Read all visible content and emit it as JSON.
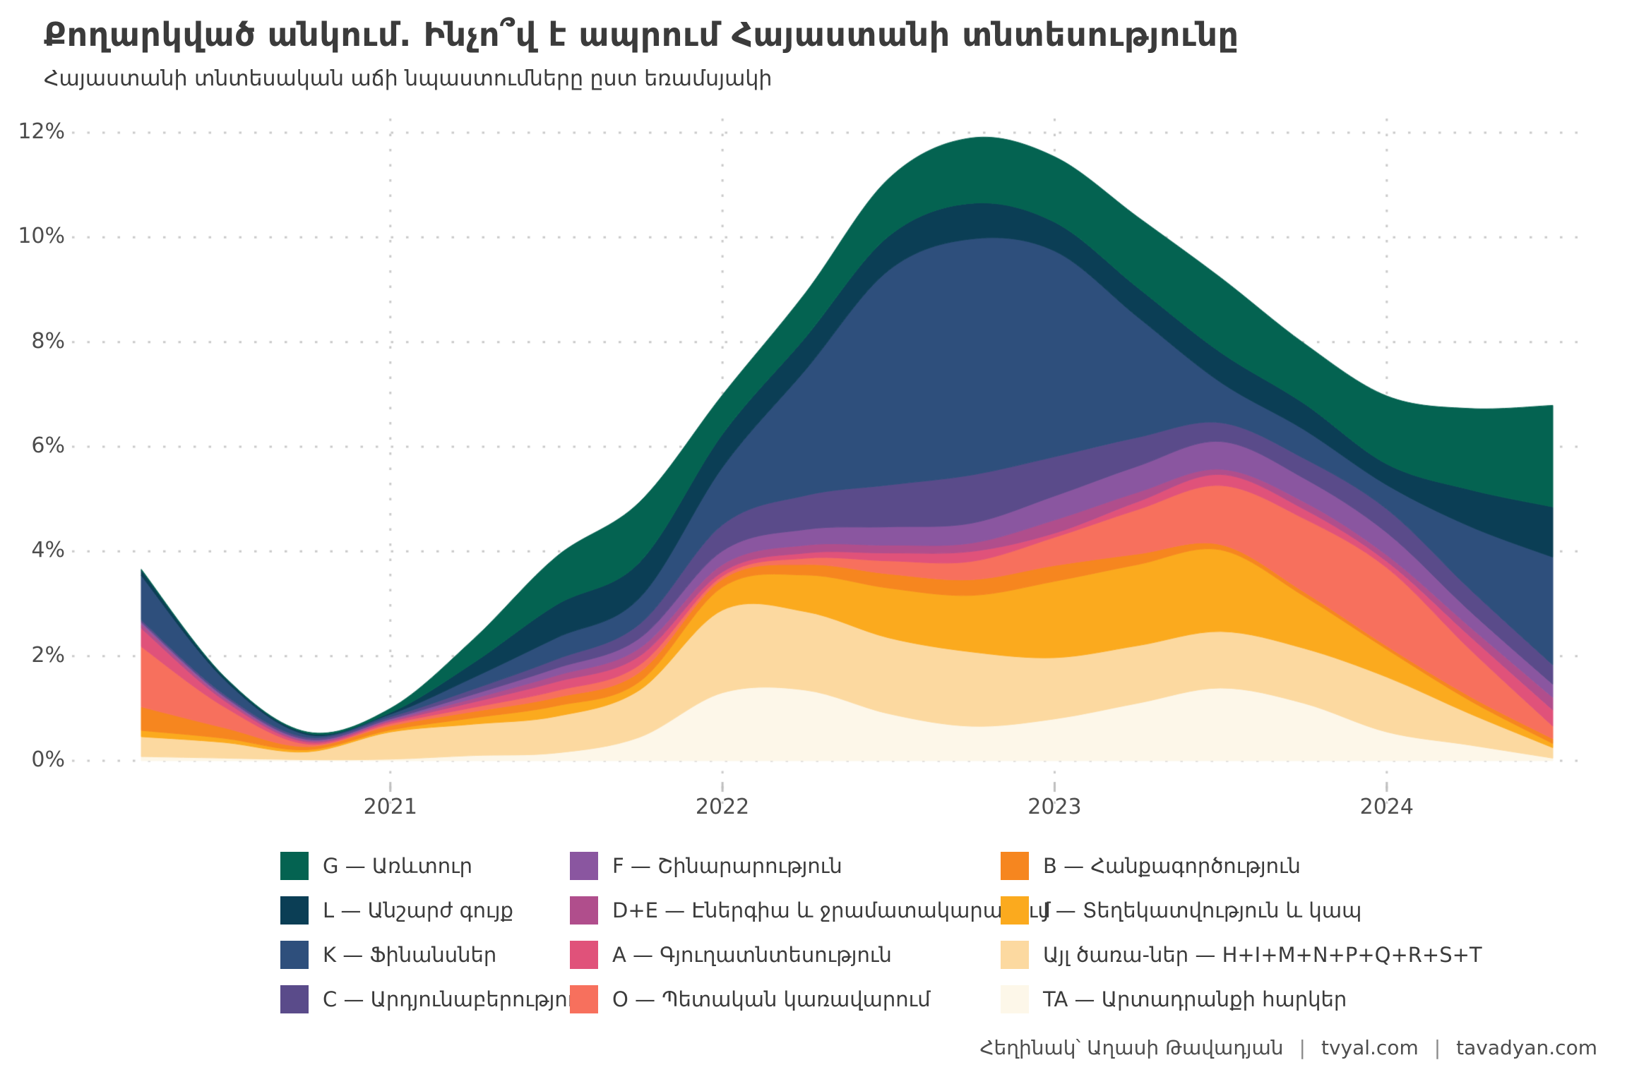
{
  "title": "Քողարկված անկում. Ինչո՞վ է ապրում Հայաստանի տնտեսությունը",
  "subtitle": "Հայաստանի տնտեսական աճի նպաստումները ըստ եռամսյակի",
  "y_axis": {
    "labels": [
      "12%",
      "10%",
      "8%",
      "6%",
      "4%",
      "2%",
      "0%"
    ],
    "values": [
      12,
      10,
      8,
      6,
      4,
      2,
      0
    ]
  },
  "x_axis": {
    "labels": [
      "2021",
      "2022",
      "2023",
      "2024"
    ],
    "tick_indices": [
      3,
      7,
      11,
      15
    ]
  },
  "legend": {
    "items": [
      {
        "label": "G — Առևտուր",
        "color": "#046351"
      },
      {
        "label": "L — Անշարժ գույք",
        "color": "#0b3e55"
      },
      {
        "label": "K — Ֆինանսներ",
        "color": "#2e4f7c"
      },
      {
        "label": "C — Արդյունաբերություն",
        "color": "#5a4b8a"
      },
      {
        "label": "F — Շինարարություն",
        "color": "#8a56a0"
      },
      {
        "label": "D+E — Էներգիա և ջրամատակարարում",
        "color": "#b04e8c"
      },
      {
        "label": "A — Գյուղատնտեսություն",
        "color": "#e0527a"
      },
      {
        "label": "O — Պետական կառավարում",
        "color": "#f7705d"
      },
      {
        "label": "B — Հանքագործություն",
        "color": "#f6861f"
      },
      {
        "label": "J — Տեղեկատվություն և կապ",
        "color": "#fbaa1e"
      },
      {
        "label": "Այլ ծառա-ներ — H+I+M+N+P+Q+R+S+T",
        "color": "#fcd9a0"
      },
      {
        "label": "TA — Արտադրանքի հարկեր",
        "color": "#fdf7e9"
      }
    ]
  },
  "footer": {
    "author": "Հեղինակ՝ Աղասի Թավադյան",
    "separator": "|",
    "link1": "tvyal.com",
    "link2": "tavadyan.com"
  },
  "chart_data": {
    "type": "area",
    "stacked": true,
    "smoothed": true,
    "title": "Քողարկված անկում. Ինչո՞վ է ապրում Հայաստանի տնտեսությունը",
    "subtitle": "Հայաստանի տնտեսական աճի նպաստումները ըստ եռամսյակի",
    "xlabel": "",
    "ylabel": "",
    "ylim": [
      0,
      12
    ],
    "grid": "dotted",
    "legend_position": "bottom",
    "x": [
      "2020 Q2",
      "2020 Q3",
      "2020 Q4",
      "2021 Q1",
      "2021 Q2",
      "2021 Q3",
      "2021 Q4",
      "2022 Q1",
      "2022 Q2",
      "2022 Q3",
      "2022 Q4",
      "2023 Q1",
      "2023 Q2",
      "2023 Q3",
      "2023 Q4",
      "2024 Q1",
      "2024 Q2",
      "2024 Q3"
    ],
    "units": "percentage points of GDP growth",
    "series_bottom_to_top": [
      {
        "name": "TA — Արտադրանքի հարկեր",
        "color": "#fdf7e9",
        "values": [
          0.08,
          0.05,
          0.02,
          0.03,
          0.1,
          0.15,
          0.45,
          1.3,
          1.35,
          0.9,
          0.66,
          0.8,
          1.1,
          1.39,
          1.1,
          0.55,
          0.3,
          0.05
        ]
      },
      {
        "name": "Այլ ծառա-ներ — H+I+M+N+P+Q+R+S+T",
        "color": "#fcd9a0",
        "values": [
          0.38,
          0.3,
          0.15,
          0.52,
          0.6,
          0.7,
          0.9,
          1.58,
          1.5,
          1.45,
          1.42,
          1.17,
          1.1,
          1.08,
          1.05,
          1.05,
          0.6,
          0.2
        ]
      },
      {
        "name": "J — Տեղեկատվություն և կապ",
        "color": "#fbaa1e",
        "values": [
          0.12,
          0.08,
          0.04,
          0.04,
          0.12,
          0.2,
          0.16,
          0.44,
          0.7,
          0.95,
          1.08,
          1.46,
          1.55,
          1.56,
          1.0,
          0.53,
          0.25,
          0.08
        ]
      },
      {
        "name": "B — Հանքագործություն",
        "color": "#f6861f",
        "values": [
          0.45,
          0.2,
          0.06,
          0.08,
          0.12,
          0.16,
          0.18,
          0.15,
          0.2,
          0.27,
          0.3,
          0.3,
          0.2,
          0.1,
          0.08,
          0.06,
          0.08,
          0.09
        ]
      },
      {
        "name": "O — Պետական կառավարում",
        "color": "#f7705d",
        "values": [
          1.15,
          0.4,
          0.05,
          0.04,
          0.08,
          0.13,
          0.14,
          0.06,
          0.12,
          0.25,
          0.35,
          0.54,
          0.85,
          1.13,
          1.4,
          1.5,
          0.9,
          0.24
        ]
      },
      {
        "name": "A — Գյուղատնտեսություն",
        "color": "#e0527a",
        "values": [
          0.35,
          0.12,
          0.04,
          0.04,
          0.1,
          0.17,
          0.17,
          0.08,
          0.1,
          0.15,
          0.19,
          0.08,
          0.15,
          0.21,
          0.18,
          0.12,
          0.25,
          0.31
        ]
      },
      {
        "name": "D+E — Էներգիա և ջրամատակարարում",
        "color": "#b04e8c",
        "values": [
          0.08,
          0.05,
          0.03,
          0.03,
          0.07,
          0.12,
          0.15,
          0.14,
          0.15,
          0.15,
          0.16,
          0.25,
          0.18,
          0.1,
          0.14,
          0.12,
          0.18,
          0.24
        ]
      },
      {
        "name": "F — Շինարարություն",
        "color": "#8a56a0",
        "values": [
          0.04,
          0.03,
          0.02,
          0.02,
          0.08,
          0.14,
          0.19,
          0.26,
          0.3,
          0.35,
          0.38,
          0.46,
          0.5,
          0.53,
          0.45,
          0.43,
          0.3,
          0.25
        ]
      },
      {
        "name": "C — Արդյունաբերություն",
        "color": "#5a4b8a",
        "values": [
          0.04,
          0.04,
          0.04,
          0.04,
          0.1,
          0.17,
          0.27,
          0.5,
          0.65,
          0.8,
          0.92,
          0.75,
          0.55,
          0.36,
          0.38,
          0.45,
          0.42,
          0.37
        ]
      },
      {
        "name": "K — Ֆինանսներ",
        "color": "#2e4f7c",
        "values": [
          0.85,
          0.28,
          0.05,
          0.05,
          0.22,
          0.41,
          0.5,
          1.1,
          2.4,
          4.1,
          4.51,
          3.93,
          2.3,
          0.77,
          0.55,
          0.46,
          1.2,
          2.06
        ]
      },
      {
        "name": "L — Անշարժ գույք",
        "color": "#0b3e55",
        "values": [
          0.1,
          0.05,
          0.03,
          0.03,
          0.28,
          0.63,
          0.68,
          0.63,
          0.62,
          0.65,
          0.68,
          0.55,
          0.56,
          0.57,
          0.5,
          0.4,
          0.7,
          0.96
        ]
      },
      {
        "name": "G — Առևտուր",
        "color": "#046351",
        "values": [
          0.02,
          0.01,
          0.02,
          0.08,
          0.45,
          0.92,
          1.15,
          0.75,
          0.85,
          1.1,
          1.25,
          1.25,
          1.35,
          1.43,
          1.15,
          1.3,
          1.55,
          1.94
        ]
      }
    ]
  }
}
